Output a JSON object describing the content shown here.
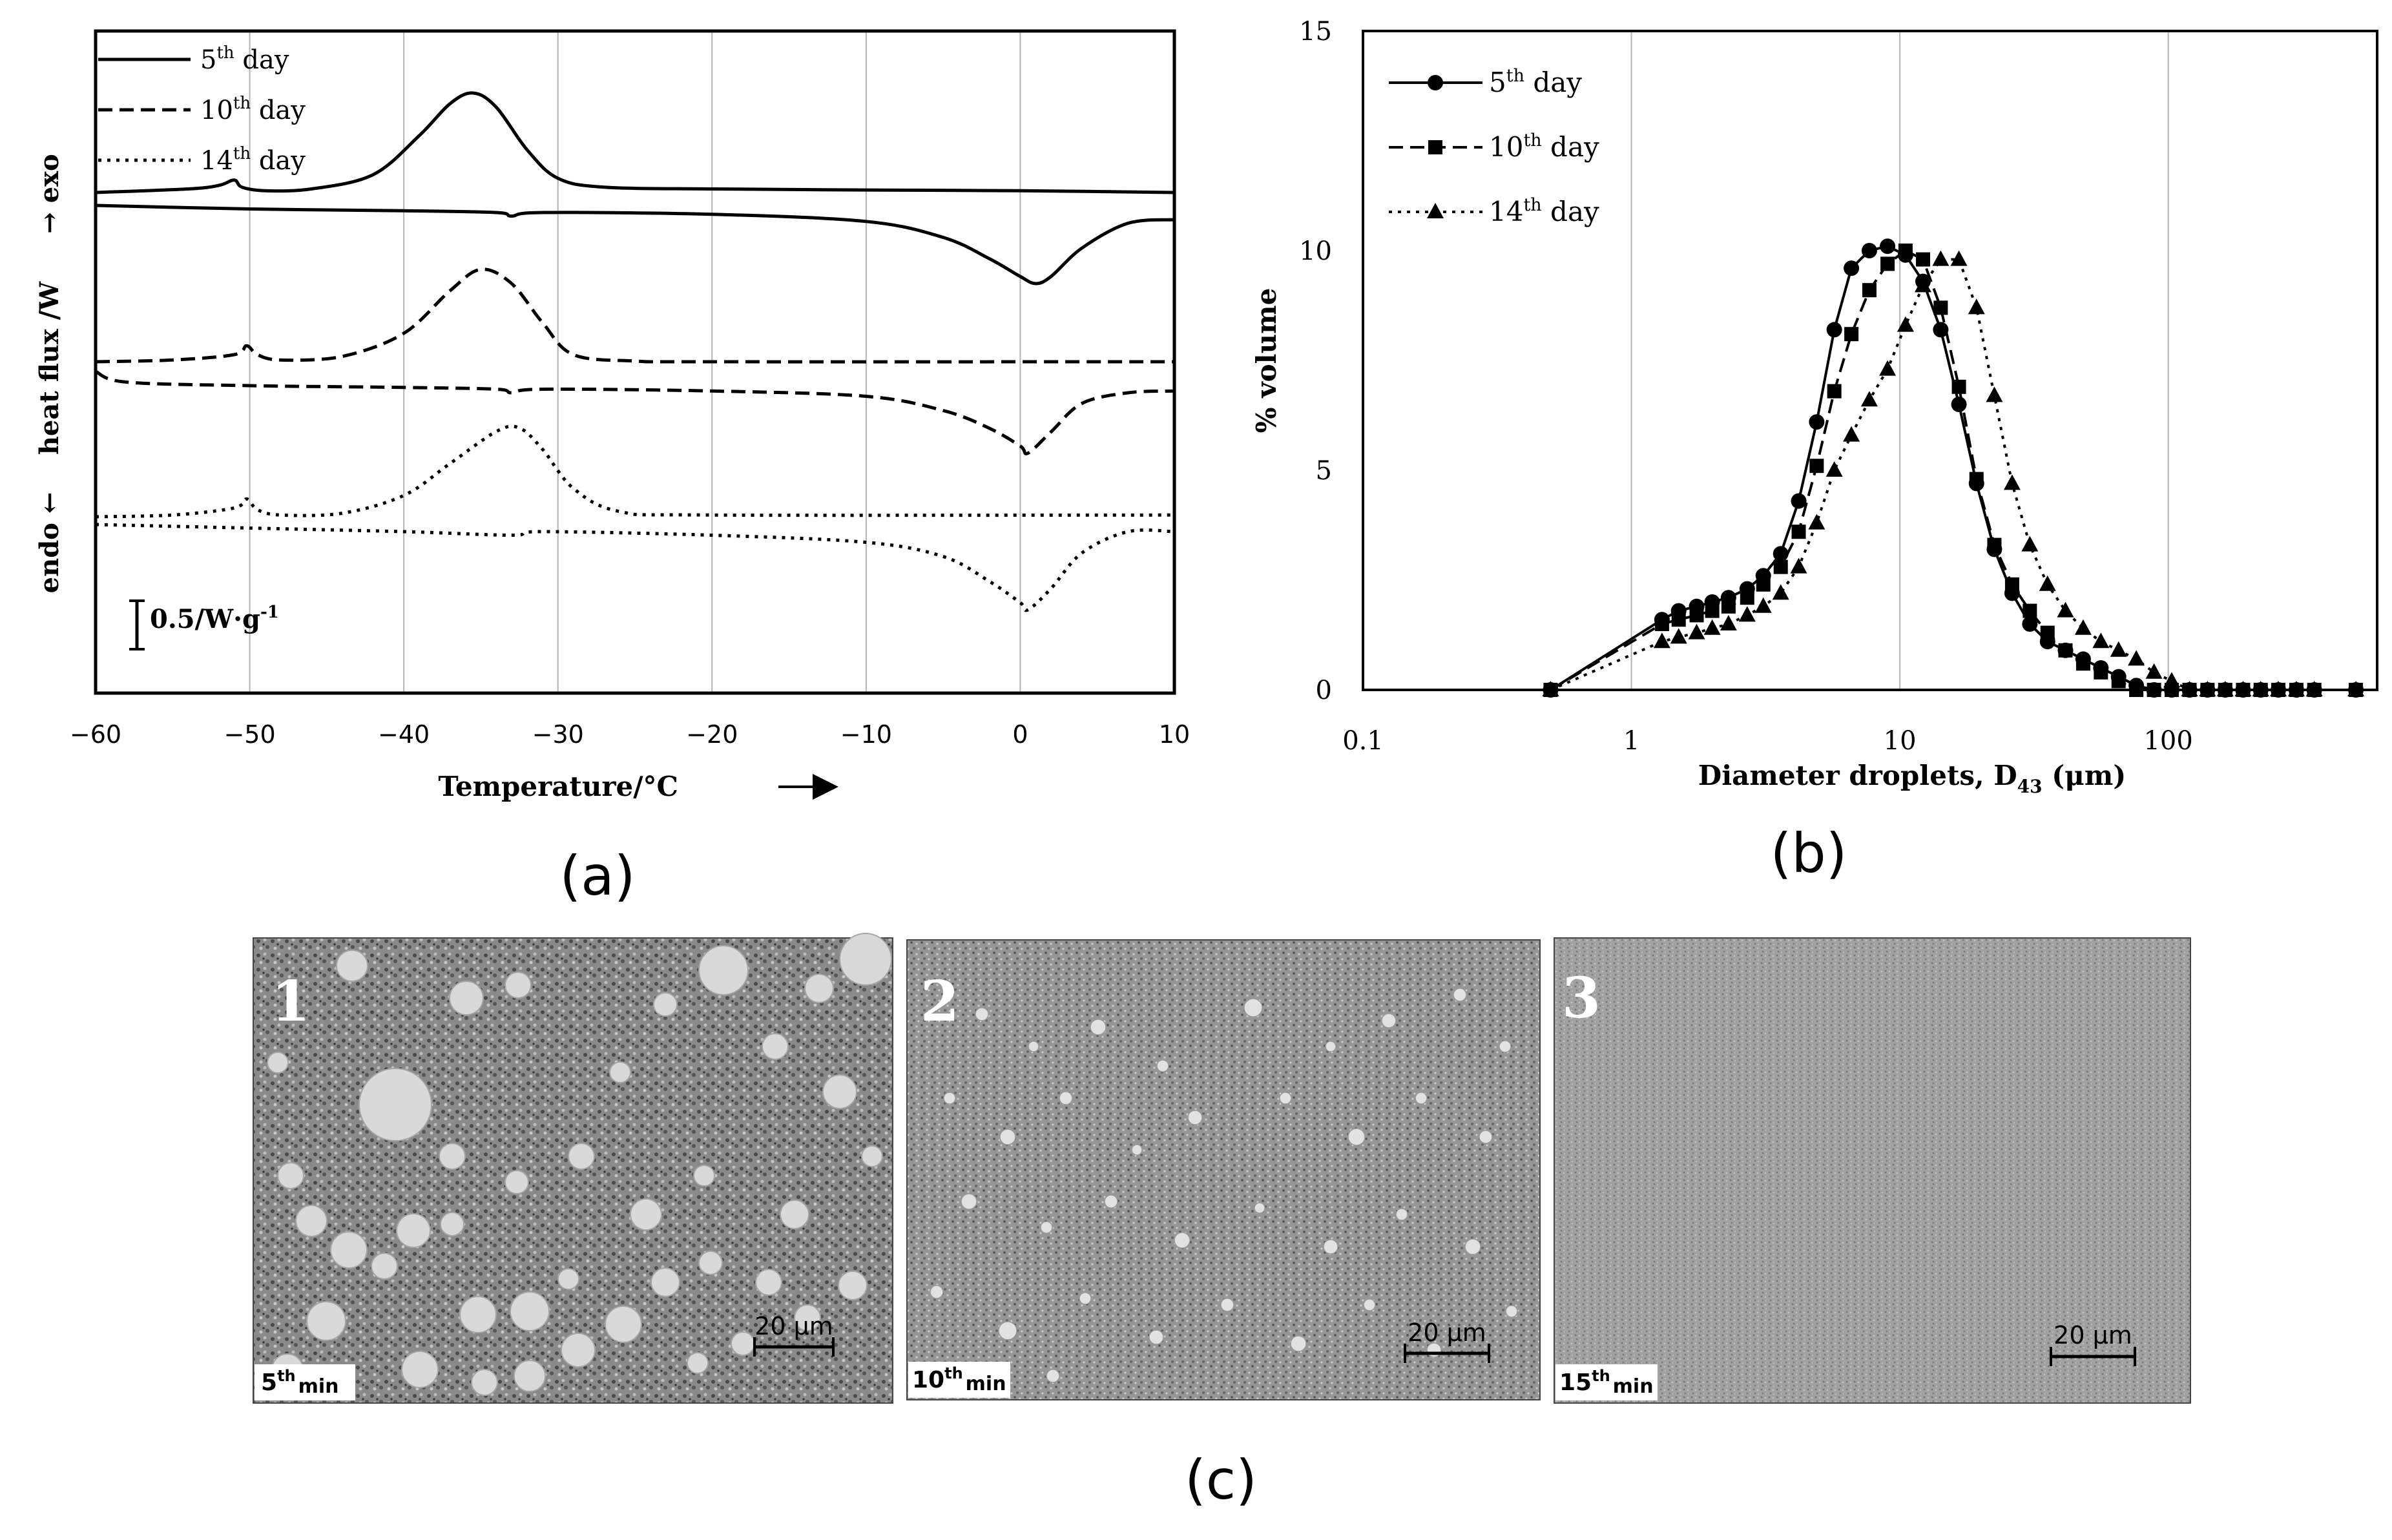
{
  "chart_data": [
    {
      "panel": "(a)",
      "type": "line",
      "xlabel": "Temperature/°C",
      "xlabel_arrow": "→",
      "ylabel_left": "endo ←",
      "ylabel_mid": "heat flux /W",
      "ylabel_right": "→ exo",
      "scale_bar_label": "0.5/W·g",
      "scale_bar_sup": "-1",
      "xlim": [
        -60,
        10
      ],
      "xticks": [
        -60,
        -50,
        -40,
        -30,
        -20,
        -10,
        0,
        10
      ],
      "grid": true,
      "legend": [
        "5th day",
        "10th day",
        "14th day"
      ],
      "legend_parts": [
        {
          "pre": "5",
          "sup": "th",
          "post": " day"
        },
        {
          "pre": "10",
          "sup": "th",
          "post": " day"
        },
        {
          "pre": "14",
          "sup": "th",
          "post": " day"
        }
      ],
      "series": [
        {
          "name": "5th day",
          "dash": "solid",
          "curves": {
            "cooling": [
              [
                -60,
                0.0
              ],
              [
                -54,
                0.1
              ],
              [
                -52,
                0.2
              ],
              [
                -51,
                0.35
              ],
              [
                -50.5,
                0.15
              ],
              [
                -49,
                0.05
              ],
              [
                -46,
                0.1
              ],
              [
                -42,
                0.5
              ],
              [
                -39,
                1.6
              ],
              [
                -37,
                2.5
              ],
              [
                -35.5,
                2.8
              ],
              [
                -34,
                2.4
              ],
              [
                -32,
                1.2
              ],
              [
                -30,
                0.4
              ],
              [
                -27,
                0.15
              ],
              [
                -20,
                0.1
              ],
              [
                -10,
                0.07
              ],
              [
                0,
                0.05
              ],
              [
                10,
                0.0
              ]
            ],
            "heating": [
              [
                -60,
                0.0
              ],
              [
                -50,
                -0.1
              ],
              [
                -40,
                -0.15
              ],
              [
                -34,
                -0.2
              ],
              [
                -33,
                -0.3
              ],
              [
                -31,
                -0.2
              ],
              [
                -20,
                -0.25
              ],
              [
                -10,
                -0.45
              ],
              [
                -5,
                -0.9
              ],
              [
                -2,
                -1.5
              ],
              [
                0,
                -2.0
              ],
              [
                1,
                -2.2
              ],
              [
                2,
                -2.0
              ],
              [
                4,
                -1.2
              ],
              [
                7,
                -0.5
              ],
              [
                10,
                -0.4
              ]
            ]
          }
        },
        {
          "name": "10th day",
          "dash": "dashed",
          "curves": {
            "cooling": [
              [
                -60,
                0.0
              ],
              [
                -55,
                0.05
              ],
              [
                -51,
                0.2
              ],
              [
                -50.2,
                0.45
              ],
              [
                -49.5,
                0.2
              ],
              [
                -48,
                0.05
              ],
              [
                -44,
                0.15
              ],
              [
                -40,
                0.8
              ],
              [
                -37,
                2.0
              ],
              [
                -35,
                2.6
              ],
              [
                -33,
                2.2
              ],
              [
                -31,
                1.1
              ],
              [
                -29,
                0.2
              ],
              [
                -25,
                0.02
              ],
              [
                -20,
                0.0
              ],
              [
                10,
                0.0
              ]
            ],
            "heating": [
              [
                -60,
                0.0
              ],
              [
                -58,
                -0.3
              ],
              [
                -50,
                -0.4
              ],
              [
                -40,
                -0.45
              ],
              [
                -34,
                -0.5
              ],
              [
                -33,
                -0.6
              ],
              [
                -31,
                -0.5
              ],
              [
                -20,
                -0.55
              ],
              [
                -10,
                -0.7
              ],
              [
                -5,
                -1.1
              ],
              [
                -2,
                -1.6
              ],
              [
                0,
                -2.1
              ],
              [
                0.5,
                -2.3
              ],
              [
                2,
                -1.7
              ],
              [
                4,
                -0.9
              ],
              [
                7,
                -0.6
              ],
              [
                10,
                -0.55
              ]
            ]
          }
        },
        {
          "name": "14th day",
          "dash": "dotted",
          "curves": {
            "cooling": [
              [
                -60,
                0.0
              ],
              [
                -55,
                0.05
              ],
              [
                -51,
                0.25
              ],
              [
                -50.2,
                0.5
              ],
              [
                -49.5,
                0.2
              ],
              [
                -48,
                0.05
              ],
              [
                -44,
                0.1
              ],
              [
                -40,
                0.6
              ],
              [
                -37,
                1.5
              ],
              [
                -34,
                2.4
              ],
              [
                -32.5,
                2.5
              ],
              [
                -31,
                1.9
              ],
              [
                -29,
                0.8
              ],
              [
                -26,
                0.15
              ],
              [
                -20,
                0.05
              ],
              [
                10,
                0.05
              ]
            ],
            "heating": [
              [
                -60,
                0.0
              ],
              [
                -50,
                -0.1
              ],
              [
                -40,
                -0.2
              ],
              [
                -33,
                -0.3
              ],
              [
                -31,
                -0.2
              ],
              [
                -20,
                -0.3
              ],
              [
                -10,
                -0.5
              ],
              [
                -5,
                -0.9
              ],
              [
                -2,
                -1.6
              ],
              [
                0,
                -2.2
              ],
              [
                0.5,
                -2.4
              ],
              [
                2,
                -1.8
              ],
              [
                4,
                -0.8
              ],
              [
                7,
                -0.2
              ],
              [
                10,
                -0.2
              ]
            ]
          }
        }
      ]
    },
    {
      "panel": "(b)",
      "type": "line",
      "xscale": "log",
      "xlim": [
        0.1,
        600
      ],
      "ylim": [
        0,
        15
      ],
      "xticks": [
        0.1,
        1,
        10,
        100
      ],
      "xtick_labels": [
        "0.1",
        "1",
        "10",
        "100"
      ],
      "yticks": [
        0,
        5,
        10,
        15
      ],
      "ytick_labels": [
        "0",
        "5",
        "10",
        "15"
      ],
      "ylabel": "% volume",
      "xlabel_main": "Diameter droplets, D",
      "xlabel_sub": "43",
      "xlabel_unit": " (μm)",
      "grid": true,
      "legend": [
        "5th day",
        "10th day",
        "14th day"
      ],
      "legend_parts": [
        {
          "pre": "5",
          "sup": "th",
          "post": " day"
        },
        {
          "pre": "10",
          "sup": "th",
          "post": " day"
        },
        {
          "pre": "14",
          "sup": "th",
          "post": " day"
        }
      ],
      "x": [
        0.5,
        1.3,
        1.5,
        1.75,
        2.0,
        2.3,
        2.7,
        3.1,
        3.6,
        4.2,
        4.9,
        5.7,
        6.6,
        7.7,
        9.0,
        10.5,
        12.2,
        14.2,
        16.6,
        19.3,
        22.5,
        26.2,
        30.5,
        35.5,
        41.4,
        48.2,
        56.1,
        65.3,
        76.0,
        88.5,
        103,
        120,
        140,
        163,
        190,
        221,
        257,
        300,
        350,
        500
      ],
      "series": [
        {
          "name": "5th day",
          "marker": "circle",
          "dash": "solid",
          "values": [
            0.0,
            1.6,
            1.8,
            1.9,
            2.0,
            2.1,
            2.3,
            2.6,
            3.1,
            4.3,
            6.1,
            8.2,
            9.6,
            10.0,
            10.1,
            9.9,
            9.3,
            8.2,
            6.5,
            4.7,
            3.2,
            2.2,
            1.5,
            1.1,
            0.9,
            0.7,
            0.5,
            0.3,
            0.1,
            0.0,
            0.0,
            0.0,
            0.0,
            0.0,
            0.0,
            0.0,
            0.0,
            0.0,
            0.0,
            0.0
          ]
        },
        {
          "name": "10th day",
          "marker": "square",
          "dash": "dashed",
          "values": [
            0.0,
            1.5,
            1.6,
            1.7,
            1.8,
            1.9,
            2.1,
            2.4,
            2.8,
            3.6,
            5.1,
            6.8,
            8.1,
            9.1,
            9.7,
            10.0,
            9.8,
            8.7,
            6.9,
            4.8,
            3.3,
            2.4,
            1.8,
            1.3,
            0.9,
            0.6,
            0.4,
            0.2,
            0.0,
            0.0,
            0.0,
            0.0,
            0.0,
            0.0,
            0.0,
            0.0,
            0.0,
            0.0,
            0.0,
            0.0
          ]
        },
        {
          "name": "14th day",
          "marker": "triangle",
          "dash": "dotted",
          "values": [
            0.0,
            1.1,
            1.2,
            1.3,
            1.4,
            1.5,
            1.7,
            1.9,
            2.2,
            2.8,
            3.8,
            5.0,
            5.8,
            6.6,
            7.3,
            8.3,
            9.2,
            9.8,
            9.8,
            8.7,
            6.7,
            4.7,
            3.3,
            2.4,
            1.8,
            1.4,
            1.1,
            0.9,
            0.7,
            0.4,
            0.2,
            0.0,
            0.0,
            0.0,
            0.0,
            0.0,
            0.0,
            0.0,
            0.0,
            0.0
          ]
        }
      ]
    }
  ],
  "micrographs": [
    {
      "number": "1",
      "time_value": "5",
      "time_sup": "th",
      "time_unit": "min",
      "scale_label": "20 µm",
      "tone": "coarse"
    },
    {
      "number": "2",
      "time_value": "10",
      "time_sup": "th",
      "time_unit": "min",
      "scale_label": "20 µm",
      "tone": "medium"
    },
    {
      "number": "3",
      "time_value": "15",
      "time_sup": "th",
      "time_unit": "min",
      "scale_label": "20 µm",
      "tone": "fine"
    }
  ],
  "panel_labels": {
    "a": "(a)",
    "b": "(b)",
    "c": "(c)"
  }
}
